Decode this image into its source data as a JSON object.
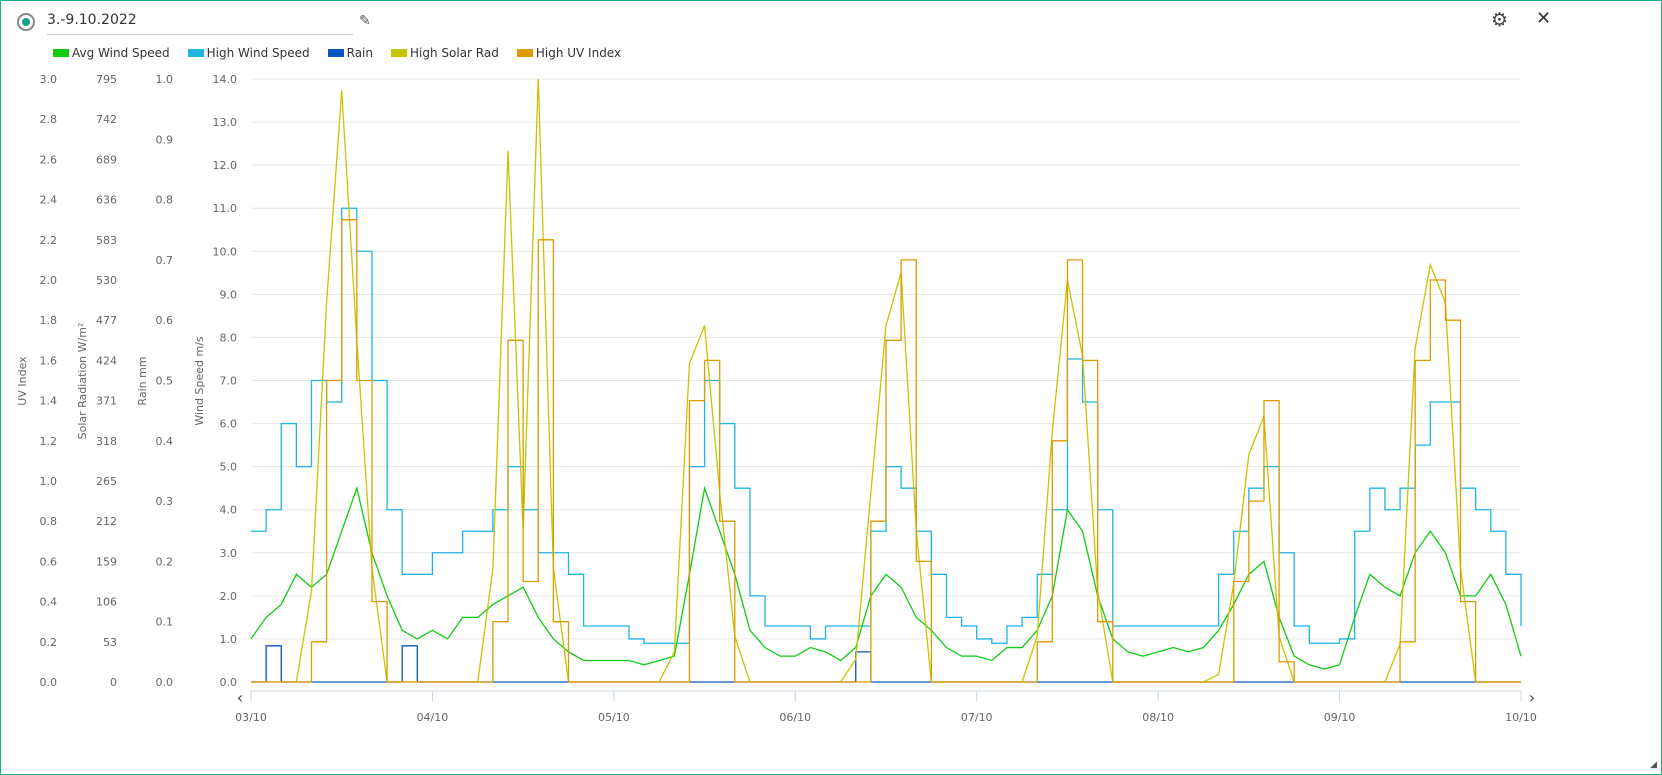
{
  "header": {
    "title": "3.-9.10.2022",
    "edit_icon": "pencil-icon",
    "settings_icon": "gear-icon",
    "close_icon": "close-icon"
  },
  "legend": [
    {
      "label": "Avg Wind Speed",
      "color": "#11cc11"
    },
    {
      "label": "High Wind Speed",
      "color": "#1eb4e4"
    },
    {
      "label": "Rain",
      "color": "#0a55bb"
    },
    {
      "label": "High Solar Rad",
      "color": "#c8c400"
    },
    {
      "label": "High UV Index",
      "color": "#e09a00"
    }
  ],
  "chart_data": {
    "type": "line",
    "x_labels": [
      "03/10",
      "04/10",
      "05/10",
      "06/10",
      "07/10",
      "08/10",
      "09/10",
      "10/10"
    ],
    "x_step_hours": 2,
    "axes": {
      "uv": {
        "title": "UV Index",
        "range": [
          0,
          3
        ],
        "ticks": [
          "0.0",
          "0.2",
          "0.4",
          "0.6",
          "0.8",
          "1.0",
          "1.2",
          "1.4",
          "1.6",
          "1.8",
          "2.0",
          "2.2",
          "2.4",
          "2.6",
          "2.8",
          "3.0"
        ]
      },
      "solar": {
        "title": "Solar Radiation W/m²",
        "range": [
          0,
          795
        ],
        "ticks": [
          "0",
          "53",
          "106",
          "159",
          "212",
          "265",
          "318",
          "371",
          "424",
          "477",
          "530",
          "583",
          "636",
          "689",
          "742",
          "795"
        ]
      },
      "rain": {
        "title": "Rain mm",
        "range": [
          0,
          1
        ],
        "ticks": [
          "0.0",
          "0.1",
          "0.2",
          "0.3",
          "0.4",
          "0.5",
          "0.6",
          "0.7",
          "0.8",
          "0.9",
          "1.0"
        ]
      },
      "wind": {
        "title": "Wind Speed m/s",
        "range": [
          0,
          14
        ],
        "ticks": [
          "0.0",
          "1.0",
          "2.0",
          "3.0",
          "4.0",
          "5.0",
          "6.0",
          "7.0",
          "8.0",
          "9.0",
          "10.0",
          "11.0",
          "12.0",
          "13.0",
          "14.0"
        ]
      }
    },
    "series": [
      {
        "name": "Avg Wind Speed",
        "axis": "wind",
        "color": "#11cc11",
        "step": false,
        "values": [
          1.0,
          1.5,
          1.8,
          2.5,
          2.2,
          2.5,
          3.5,
          4.5,
          3.0,
          2.0,
          1.2,
          1.0,
          1.2,
          1.0,
          1.5,
          1.5,
          1.8,
          2.0,
          2.2,
          1.5,
          1.0,
          0.7,
          0.5,
          0.5,
          0.5,
          0.5,
          0.4,
          0.5,
          0.6,
          2.5,
          4.5,
          3.5,
          2.5,
          1.2,
          0.8,
          0.6,
          0.6,
          0.8,
          0.7,
          0.5,
          0.8,
          2.0,
          2.5,
          2.2,
          1.5,
          1.2,
          0.8,
          0.6,
          0.6,
          0.5,
          0.8,
          0.8,
          1.2,
          2.0,
          4.0,
          3.5,
          2.0,
          1.0,
          0.7,
          0.6,
          0.7,
          0.8,
          0.7,
          0.8,
          1.2,
          1.8,
          2.5,
          2.8,
          1.5,
          0.6,
          0.4,
          0.3,
          0.4,
          1.5,
          2.5,
          2.2,
          2.0,
          3.0,
          3.5,
          3.0,
          2.0,
          2.0,
          2.5,
          1.8,
          0.6
        ]
      },
      {
        "name": "High Wind Speed",
        "axis": "wind",
        "color": "#1eb4e4",
        "step": true,
        "values": [
          3.5,
          4.0,
          6.0,
          5.0,
          7.0,
          6.5,
          11.0,
          10.0,
          7.0,
          4.0,
          2.5,
          2.5,
          3.0,
          3.0,
          3.5,
          3.5,
          4.0,
          5.0,
          4.0,
          3.0,
          3.0,
          2.5,
          1.3,
          1.3,
          1.3,
          1.0,
          0.9,
          0.9,
          0.9,
          5.0,
          7.0,
          6.0,
          4.5,
          2.0,
          1.3,
          1.3,
          1.3,
          1.0,
          1.3,
          1.3,
          1.3,
          3.5,
          5.0,
          4.5,
          3.5,
          2.5,
          1.5,
          1.3,
          1.0,
          0.9,
          1.3,
          1.5,
          2.5,
          4.0,
          7.5,
          6.5,
          4.0,
          1.3,
          1.3,
          1.3,
          1.3,
          1.3,
          1.3,
          1.3,
          2.5,
          3.5,
          4.5,
          5.0,
          3.0,
          1.3,
          0.9,
          0.9,
          1.0,
          3.5,
          4.5,
          4.0,
          4.5,
          5.5,
          6.5,
          6.5,
          4.5,
          4.0,
          3.5,
          2.5,
          1.3
        ]
      },
      {
        "name": "Rain",
        "axis": "rain",
        "color": "#0a55bb",
        "step": true,
        "values": [
          0,
          0.06,
          0,
          0,
          0,
          0,
          0,
          0,
          0,
          0,
          0.06,
          0,
          0,
          0,
          0,
          0,
          0,
          0,
          0,
          0,
          0,
          0,
          0,
          0,
          0,
          0,
          0,
          0,
          0,
          0,
          0,
          0,
          0,
          0,
          0,
          0,
          0,
          0,
          0,
          0,
          0.05,
          0,
          0,
          0,
          0,
          0,
          0,
          0,
          0,
          0,
          0,
          0,
          0,
          0,
          0,
          0,
          0,
          0,
          0,
          0,
          0,
          0,
          0,
          0,
          0,
          0,
          0,
          0,
          0,
          0,
          0,
          0,
          0,
          0,
          0,
          0,
          0,
          0,
          0,
          0,
          0,
          0,
          0,
          0,
          0
        ]
      },
      {
        "name": "High Solar Rad",
        "axis": "solar",
        "color": "#c8c400",
        "step": false,
        "values": [
          0,
          0,
          0,
          0,
          120,
          500,
          780,
          450,
          150,
          0,
          0,
          0,
          0,
          0,
          0,
          0,
          150,
          700,
          200,
          795,
          150,
          0,
          0,
          0,
          0,
          0,
          0,
          0,
          40,
          420,
          470,
          250,
          60,
          0,
          0,
          0,
          0,
          0,
          0,
          0,
          30,
          250,
          470,
          540,
          200,
          0,
          0,
          0,
          0,
          0,
          0,
          0,
          60,
          330,
          530,
          430,
          120,
          0,
          0,
          0,
          0,
          0,
          0,
          0,
          10,
          130,
          300,
          350,
          60,
          0,
          0,
          0,
          0,
          0,
          0,
          0,
          50,
          440,
          550,
          500,
          150,
          0,
          0,
          0,
          0
        ]
      },
      {
        "name": "High UV Index",
        "axis": "uv",
        "color": "#e09a00",
        "step": true,
        "values": [
          0,
          0,
          0,
          0,
          0.2,
          1.5,
          2.3,
          1.5,
          0.4,
          0,
          0,
          0,
          0,
          0,
          0,
          0,
          0.3,
          1.7,
          0.5,
          2.2,
          0.3,
          0,
          0,
          0,
          0,
          0,
          0,
          0,
          0,
          1.4,
          1.6,
          0.8,
          0,
          0,
          0,
          0,
          0,
          0,
          0,
          0,
          0,
          0.8,
          1.7,
          2.1,
          0.6,
          0,
          0,
          0,
          0,
          0,
          0,
          0,
          0.2,
          1.2,
          2.1,
          1.6,
          0.3,
          0,
          0,
          0,
          0,
          0,
          0,
          0,
          0,
          0.5,
          0.9,
          1.4,
          0.1,
          0,
          0,
          0,
          0,
          0,
          0,
          0,
          0.2,
          1.6,
          2.0,
          1.8,
          0.4,
          0,
          0,
          0,
          0
        ]
      }
    ]
  }
}
